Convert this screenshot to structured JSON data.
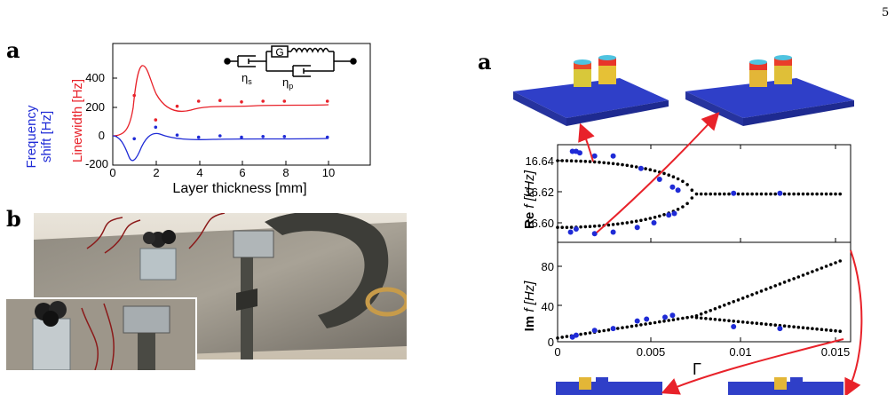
{
  "page_number": "5",
  "left": {
    "panel_a_label": "a",
    "panel_b_label": "b",
    "chart": {
      "ylabel_blue_line1": "Frequency",
      "ylabel_blue_line2": "shift [Hz]",
      "ylabel_red": "Linewidth [Hz]",
      "xlabel": "Layer thickness [mm]",
      "x_ticks": [
        "0",
        "2",
        "4",
        "6",
        "8",
        "10"
      ],
      "y_ticks": [
        "-200",
        "0",
        "200",
        "400"
      ],
      "inset": {
        "eta_s": "η",
        "eta_s_sub": "s",
        "G": "G",
        "eta_p": "η",
        "eta_p_sub": "p"
      }
    }
  },
  "right": {
    "panel_label": "a",
    "top_axis": {
      "ylabel_bold": "Re",
      "ylabel_rest": "f [kHz]",
      "y_ticks": [
        "16.64",
        "16.62",
        "16.60"
      ]
    },
    "bottom_axis": {
      "ylabel_bold": "Im",
      "ylabel_rest": "f [Hz]",
      "y_ticks": [
        "80",
        "40",
        "0"
      ],
      "x_ticks": [
        "0",
        "0.005",
        "0.01",
        "0.015"
      ],
      "xlabel": "Γ"
    }
  },
  "colors": {
    "red": "#e8222a",
    "blue": "#1f2bd6",
    "black": "#000000",
    "plate_blue": "#2f3fc8"
  },
  "chart_data": [
    {
      "type": "line",
      "xlabel": "Layer thickness [mm]",
      "ylabel": "Frequency shift [Hz] / Linewidth [Hz]",
      "xlim": [
        0,
        12
      ],
      "ylim": [
        -200,
        500
      ],
      "series": [
        {
          "name": "Linewidth [Hz]",
          "x": [
            1,
            2,
            3,
            4,
            5,
            6,
            7,
            8,
            10
          ],
          "y": [
            280,
            110,
            205,
            240,
            245,
            235,
            240,
            240,
            240
          ]
        },
        {
          "name": "Frequency shift [Hz]",
          "x": [
            1,
            2,
            3,
            4,
            5,
            6,
            7,
            8,
            10
          ],
          "y": [
            -20,
            60,
            5,
            -10,
            0,
            -10,
            -5,
            -5,
            -10
          ]
        }
      ]
    },
    {
      "type": "scatter",
      "xlabel": "Γ",
      "ylabel": "Re f [kHz]",
      "xlim": [
        0,
        0.016
      ],
      "ylim": [
        16.59,
        16.645
      ],
      "series": [
        {
          "name": "Re f",
          "x": [
            0.0008,
            0.001,
            0.0012,
            0.002,
            0.003,
            0.0045,
            0.0055,
            0.0062,
            0.0065,
            0.0095,
            0.012,
            0.0007,
            0.001,
            0.002,
            0.003,
            0.0043,
            0.0052,
            0.006,
            0.0063
          ],
          "y": [
            16.646,
            16.646,
            16.645,
            16.643,
            16.643,
            16.635,
            16.628,
            16.623,
            16.621,
            16.619,
            16.619,
            16.594,
            16.596,
            16.593,
            16.594,
            16.597,
            16.6,
            16.605,
            16.606
          ]
        }
      ]
    },
    {
      "type": "scatter",
      "xlabel": "Γ",
      "ylabel": "Im f [Hz]",
      "xlim": [
        0,
        0.0155
      ],
      "ylim": [
        0,
        95
      ],
      "series": [
        {
          "name": "Im f",
          "x": [
            0.0008,
            0.001,
            0.002,
            0.003,
            0.0043,
            0.0048,
            0.0058,
            0.0062,
            0.0095,
            0.012
          ],
          "y": [
            5,
            7,
            12,
            14,
            22,
            24,
            26,
            28,
            16,
            14
          ]
        }
      ]
    }
  ]
}
